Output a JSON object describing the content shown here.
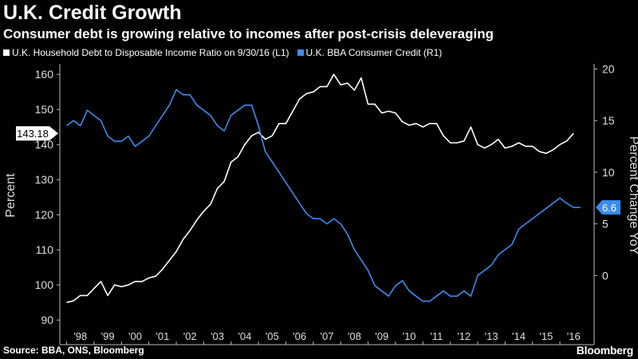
{
  "header": {
    "title": "U.K. Credit Growth",
    "subtitle": "Consumer debt is growing relative to incomes after post-crisis deleveraging"
  },
  "footer": {
    "source": "Source: BBA, ONS, Bloomberg",
    "brand": "Bloomberg"
  },
  "chart_data": {
    "type": "line",
    "title": "U.K. Credit Growth",
    "subtitle": "Consumer debt is growing relative to incomes after post-crisis deleveraging",
    "grid": false,
    "legend_placement": "top-left",
    "x_ticks": [
      "'98",
      "'99",
      "'00",
      "'01",
      "'02",
      "'03",
      "'04",
      "'05",
      "'06",
      "'07",
      "'08",
      "'09",
      "'10",
      "'11",
      "'12",
      "'13",
      "'14",
      "'15",
      "'16"
    ],
    "xlim": [
      1997.75,
      2017.25
    ],
    "y_left": {
      "label": "Percent",
      "ylim": [
        88,
        163
      ],
      "ticks": [
        90,
        100,
        110,
        120,
        130,
        140,
        150,
        160
      ]
    },
    "y_right": {
      "label": "Percent Change YoY",
      "ylim": [
        -5,
        20.5
      ],
      "ticks": [
        0,
        5,
        10,
        15,
        20
      ]
    },
    "series": [
      {
        "name": "U.K. Household Debt to Disposable Income Ratio on 9/30/16 (L1)",
        "axis": "left",
        "color": "#ffffff",
        "last_value_label": "143.18",
        "x": [
          1998.0,
          1998.25,
          1998.5,
          1998.75,
          1999.0,
          1999.25,
          1999.5,
          1999.75,
          2000.0,
          2000.25,
          2000.5,
          2000.75,
          2001.0,
          2001.25,
          2001.5,
          2001.75,
          2002.0,
          2002.25,
          2002.5,
          2002.75,
          2003.0,
          2003.25,
          2003.5,
          2003.75,
          2004.0,
          2004.25,
          2004.5,
          2004.75,
          2005.0,
          2005.25,
          2005.5,
          2005.75,
          2006.0,
          2006.25,
          2006.5,
          2006.75,
          2007.0,
          2007.25,
          2007.5,
          2007.75,
          2008.0,
          2008.25,
          2008.5,
          2008.75,
          2009.0,
          2009.25,
          2009.5,
          2009.75,
          2010.0,
          2010.25,
          2010.5,
          2010.75,
          2011.0,
          2011.25,
          2011.5,
          2011.75,
          2012.0,
          2012.25,
          2012.5,
          2012.75,
          2013.0,
          2013.25,
          2013.5,
          2013.75,
          2014.0,
          2014.25,
          2014.5,
          2014.75,
          2015.0,
          2015.25,
          2015.5,
          2015.75,
          2016.0,
          2016.25,
          2016.5
        ],
        "values": [
          95,
          95.5,
          97,
          97,
          99,
          101,
          97,
          100,
          99.5,
          100,
          101,
          101,
          102,
          102.5,
          104.5,
          107,
          109.5,
          113,
          115.5,
          118.5,
          121,
          123,
          127.5,
          129.5,
          135,
          136.5,
          140,
          142.5,
          143.5,
          141.5,
          142.5,
          146,
          146,
          149.5,
          153,
          154.5,
          155,
          156.5,
          156.5,
          160,
          157,
          157.5,
          155.5,
          159,
          151.5,
          151.5,
          149,
          149.5,
          149,
          146.5,
          145.5,
          146,
          145,
          146,
          146,
          142.5,
          140.5,
          140.5,
          141,
          145,
          140,
          139,
          140,
          141.5,
          139,
          139.5,
          140.5,
          139.5,
          139.5,
          138,
          137.5,
          138.5,
          140,
          141,
          143.18
        ]
      },
      {
        "name": "U.K. BBA Consumer Credit (R1)",
        "axis": "right",
        "color": "#3b8beb",
        "last_value_label": "6.6",
        "x": [
          1998.0,
          1998.25,
          1998.5,
          1998.75,
          1999.0,
          1999.25,
          1999.5,
          1999.75,
          2000.0,
          2000.25,
          2000.5,
          2000.75,
          2001.0,
          2001.25,
          2001.5,
          2001.75,
          2002.0,
          2002.25,
          2002.5,
          2002.75,
          2003.0,
          2003.25,
          2003.5,
          2003.75,
          2004.0,
          2004.25,
          2004.5,
          2004.75,
          2005.0,
          2005.25,
          2005.5,
          2005.75,
          2006.0,
          2006.25,
          2006.5,
          2006.75,
          2007.0,
          2007.25,
          2007.5,
          2007.75,
          2008.0,
          2008.25,
          2008.5,
          2008.75,
          2009.0,
          2009.25,
          2009.5,
          2009.75,
          2010.0,
          2010.25,
          2010.5,
          2010.75,
          2011.0,
          2011.25,
          2011.5,
          2011.75,
          2012.0,
          2012.25,
          2012.5,
          2012.75,
          2013.0,
          2013.25,
          2013.5,
          2013.75,
          2014.0,
          2014.25,
          2014.5,
          2014.75,
          2015.0,
          2015.25,
          2015.5,
          2015.75,
          2016.0,
          2016.25,
          2016.5,
          2016.75
        ],
        "values": [
          14.5,
          15,
          14.5,
          16,
          15.5,
          15,
          13.5,
          13,
          13,
          13.5,
          12.5,
          13,
          13.5,
          14.5,
          15.5,
          16.5,
          18,
          17.5,
          17.5,
          16.5,
          16,
          15.5,
          14.5,
          14,
          15.5,
          16,
          16.5,
          16.5,
          14.5,
          12,
          11,
          10,
          9,
          8,
          7,
          6,
          5.5,
          5.5,
          5,
          5.5,
          5,
          4,
          2.5,
          1.5,
          0.5,
          -1,
          -1.5,
          -2,
          -1,
          -0.5,
          -1.5,
          -2,
          -2.5,
          -2.5,
          -2,
          -1.5,
          -2,
          -2,
          -1.5,
          -2,
          0,
          0.5,
          1,
          2,
          2.5,
          3,
          4.5,
          5,
          5.5,
          6,
          6.5,
          7,
          7.5,
          7,
          6.6,
          6.6
        ]
      }
    ]
  }
}
